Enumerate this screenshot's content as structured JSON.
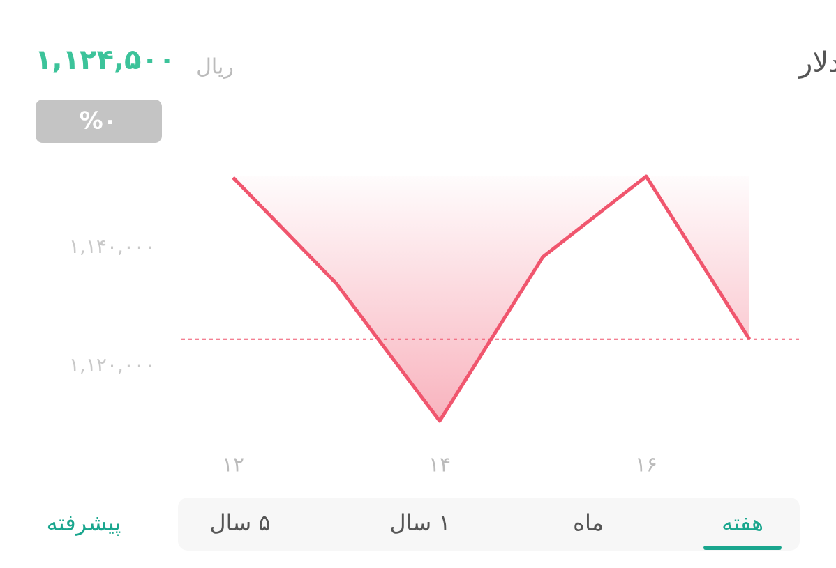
{
  "header": {
    "title": "دلار",
    "unit": "ریال",
    "change": "%۰"
  },
  "chart_data": {
    "type": "line",
    "x": [
      12,
      13,
      14,
      15,
      16,
      17
    ],
    "series": [
      {
        "color": "#f0566e",
        "values": [
          1151800,
          1133900,
          1110700,
          1138400,
          1152000,
          1124500
        ]
      }
    ],
    "xlim": [
      11.5,
      17.5
    ],
    "xticks": [
      {
        "value": 12,
        "label": "۱۲"
      },
      {
        "value": 14,
        "label": "۱۴"
      },
      {
        "value": 16,
        "label": "۱۶"
      }
    ],
    "ylim": [
      1106000,
      1156000
    ],
    "yticks": [
      {
        "value": 1120000,
        "label": "۱,۱۲۰,۰۰۰"
      },
      {
        "value": 1140000,
        "label": "۱,۱۴۰,۰۰۰"
      }
    ],
    "reference": {
      "value": 1124500,
      "label": "۱,۱۲۴,۵۰۰"
    }
  },
  "tabs": {
    "items": [
      "هفته",
      "ماه",
      "۱ سال",
      "۵ سال"
    ],
    "active": 0,
    "advanced": "پیشرفته"
  }
}
